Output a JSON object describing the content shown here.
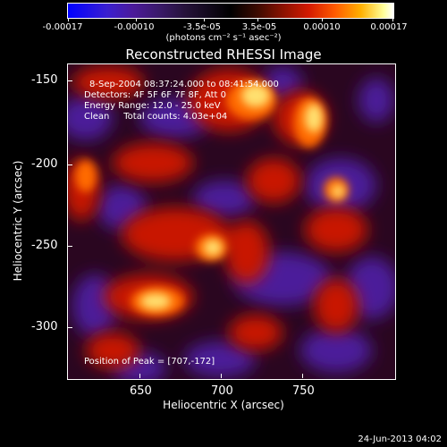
{
  "colorbar": {
    "ticks": [
      "-0.00017",
      "-0.00010",
      "-3.5e-05",
      "3.5e-05",
      "0.00010",
      "0.00017"
    ],
    "units": "(photons cm⁻² s⁻¹ asec⁻²)"
  },
  "title": "Reconstructed RHESSI Image",
  "axes": {
    "y_ticks": [
      "-150",
      "-200",
      "-250",
      "-300"
    ],
    "x_ticks": [
      "650",
      "700",
      "750"
    ],
    "ylabel": "Heliocentric Y (arcsec)",
    "xlabel": "Heliocentric X (arcsec)"
  },
  "info": {
    "time_range": "8-Sep-2004 08:37:24.000 to 08:41:54.000",
    "detectors": "Detectors: 4F 5F 6F 7F 8F, Att 0",
    "energy": "Energy Range: 12.0 - 25.0 keV",
    "clean": "Clean     Total counts: 4.03e+04",
    "peak": "Position of Peak = [707,-172]"
  },
  "footer": {
    "date": "24-Jun-2013 04:02"
  },
  "colors": {
    "background": "#000000",
    "negative": "#4b1a9a",
    "positive_low": "#d41a00",
    "positive_high": "#ffff9a"
  }
}
